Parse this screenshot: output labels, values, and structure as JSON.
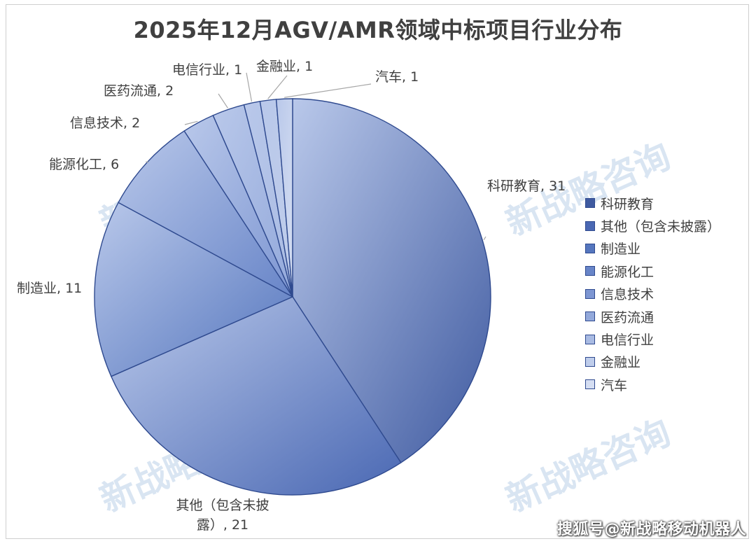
{
  "title": "2025年12月AGV/AMR领域中标项目行业分布",
  "watermark_text": "新战略咨询",
  "footer_text": "搜狐号@新战略移动机器人",
  "chart_data": {
    "type": "pie",
    "title": "2025年12月AGV/AMR领域中标项目行业分布",
    "categories": [
      "科研教育",
      "其他（包含未披露）",
      "制造业",
      "能源化工",
      "信息技术",
      "医药流通",
      "电信行业",
      "金融业",
      "汽车"
    ],
    "values": [
      31,
      21,
      11,
      6,
      2,
      2,
      1,
      1,
      1
    ],
    "data_labels": [
      "科研教育, 31",
      "其他（包含未披露）, 21",
      "制造业, 11",
      "能源化工, 6",
      "信息技术, 2",
      "医药流通, 2",
      "电信行业, 1",
      "金融业, 1",
      "汽车, 1"
    ],
    "colors": [
      "#3f5aa0",
      "#4a68b3",
      "#5576be",
      "#6885c8",
      "#7d96d2",
      "#93a9db",
      "#a9bbe3",
      "#bfcdeb",
      "#d5def2"
    ],
    "legend_position": "right"
  }
}
